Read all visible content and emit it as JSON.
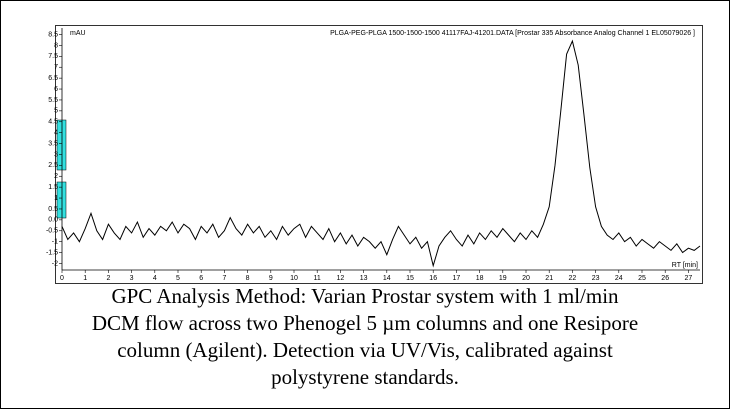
{
  "chart_data": {
    "type": "line",
    "header": "PLGA-PEG-PLGA 1500-1500-1500 41117FAJ-41201.DATA [Prostar 335 Absorbance Analog Channel 1 EL05079026         ]",
    "ylabel": "mAU",
    "xlabel": "RT [min]",
    "caption": [
      "GPC Analysis Method: Varian Prostar system with 1 ml/min",
      "DCM flow across two Phenogel 5 µm columns and one Resipore",
      "column (Agilent). Detection via UV/Vis, calibrated against",
      "polystyrene standards."
    ],
    "color": "#000000",
    "xlim": [
      0,
      27.5
    ],
    "ylim": [
      -2.3,
      8.8
    ],
    "xticks": [
      0,
      1,
      2,
      3,
      4,
      5,
      6,
      7,
      8,
      9,
      10,
      11,
      12,
      13,
      14,
      15,
      16,
      17,
      18,
      19,
      20,
      21,
      22,
      23,
      24,
      25,
      26,
      27
    ],
    "yticks": [
      8.5,
      8,
      7.5,
      7,
      6.5,
      6,
      5.5,
      5,
      4.5,
      4,
      3.5,
      3,
      2.5,
      2,
      1.5,
      1,
      0.5,
      {
        "value": 0,
        "label": "0.0"
      },
      -0.5,
      -1,
      -1.5,
      -2
    ],
    "x": [
      0,
      0.25,
      0.5,
      0.75,
      1,
      1.25,
      1.5,
      1.75,
      2,
      2.25,
      2.5,
      2.75,
      3,
      3.25,
      3.5,
      3.75,
      4,
      4.25,
      4.5,
      4.75,
      5,
      5.25,
      5.5,
      5.75,
      6,
      6.25,
      6.5,
      6.75,
      7,
      7.25,
      7.5,
      7.75,
      8,
      8.25,
      8.5,
      8.75,
      9,
      9.25,
      9.5,
      9.75,
      10,
      10.25,
      10.5,
      10.75,
      11,
      11.25,
      11.5,
      11.75,
      12,
      12.25,
      12.5,
      12.75,
      13,
      13.25,
      13.5,
      13.75,
      14,
      14.25,
      14.5,
      14.75,
      15,
      15.25,
      15.5,
      15.75,
      16,
      16.25,
      16.5,
      16.75,
      17,
      17.25,
      17.5,
      17.75,
      18,
      18.25,
      18.5,
      18.75,
      19,
      19.25,
      19.5,
      19.75,
      20,
      20.25,
      20.5,
      20.75,
      21,
      21.25,
      21.5,
      21.75,
      22,
      22.25,
      22.5,
      22.75,
      23,
      23.25,
      23.5,
      23.75,
      24,
      24.25,
      24.5,
      24.75,
      25,
      25.25,
      25.5,
      25.75,
      26,
      26.25,
      26.5,
      26.75,
      27,
      27.25,
      27.5
    ],
    "values": [
      -0.3,
      -0.9,
      -0.6,
      -1.0,
      -0.4,
      0.3,
      -0.5,
      -0.9,
      -0.2,
      -0.6,
      -0.9,
      -0.3,
      -0.6,
      -0.1,
      -0.8,
      -0.4,
      -0.7,
      -0.3,
      -0.5,
      -0.1,
      -0.6,
      -0.2,
      -0.4,
      -0.9,
      -0.3,
      -0.6,
      -0.2,
      -0.8,
      -0.5,
      0.1,
      -0.4,
      -0.7,
      -0.2,
      -0.6,
      -0.3,
      -0.8,
      -0.5,
      -0.9,
      -0.3,
      -0.7,
      -0.4,
      -0.2,
      -0.8,
      -0.3,
      -0.6,
      -0.9,
      -0.4,
      -1.0,
      -0.6,
      -1.1,
      -0.7,
      -1.2,
      -0.8,
      -1.0,
      -1.3,
      -1.0,
      -1.6,
      -0.9,
      -0.3,
      -0.7,
      -1.1,
      -0.8,
      -1.3,
      -1.0,
      -2.1,
      -1.2,
      -0.8,
      -0.5,
      -0.9,
      -1.2,
      -0.7,
      -1.1,
      -0.6,
      -0.9,
      -0.5,
      -0.8,
      -0.4,
      -0.7,
      -1.0,
      -0.6,
      -0.9,
      -0.5,
      -0.8,
      -0.2,
      0.6,
      2.5,
      5.0,
      7.6,
      8.2,
      7.1,
      4.8,
      2.4,
      0.6,
      -0.3,
      -0.7,
      -0.9,
      -0.6,
      -1.0,
      -0.8,
      -1.2,
      -0.9,
      -1.1,
      -1.3,
      -1.0,
      -1.2,
      -1.4,
      -1.1,
      -1.5,
      -1.3,
      -1.4,
      -1.2
    ]
  }
}
